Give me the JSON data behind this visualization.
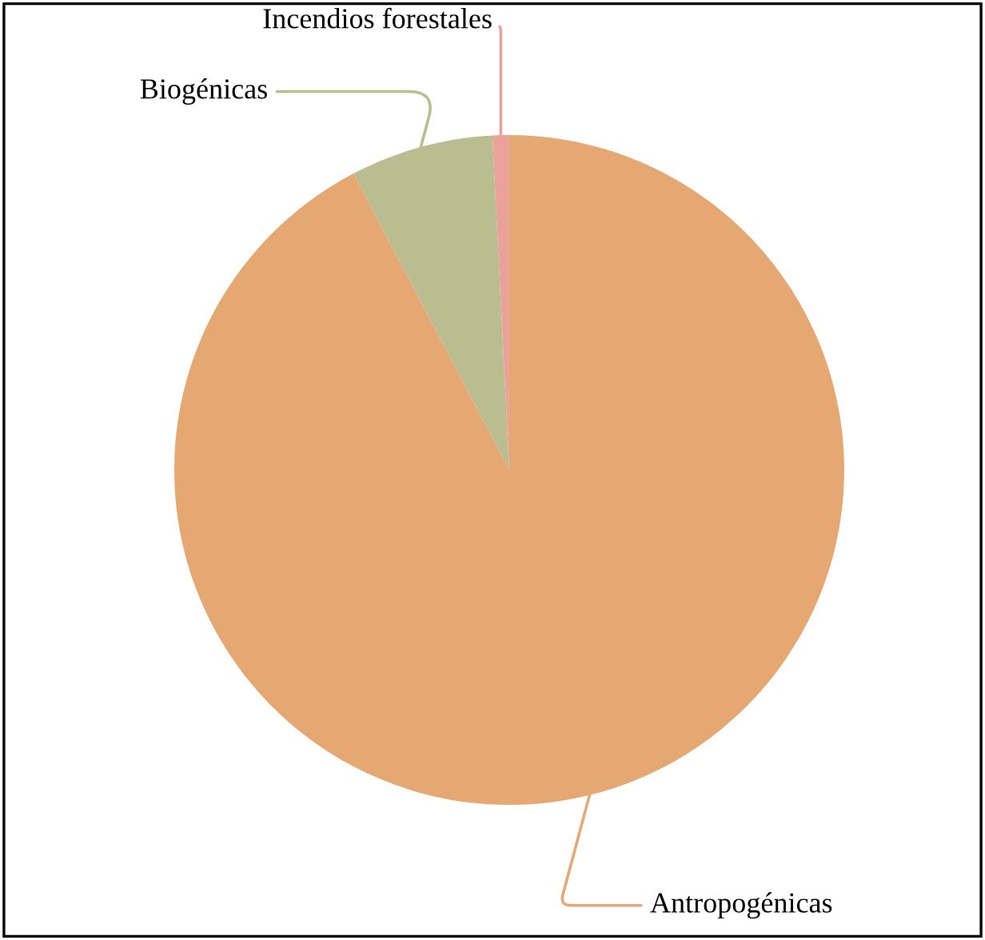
{
  "chart_data": {
    "type": "pie",
    "categories": [
      "Incendios forestales",
      "Biogénicas",
      "Antropogénicas"
    ],
    "values": [
      0.8,
      6.9,
      92.3
    ],
    "colors": [
      "#eba29a",
      "#b9bd8f",
      "#e6a872"
    ],
    "legend": false
  }
}
